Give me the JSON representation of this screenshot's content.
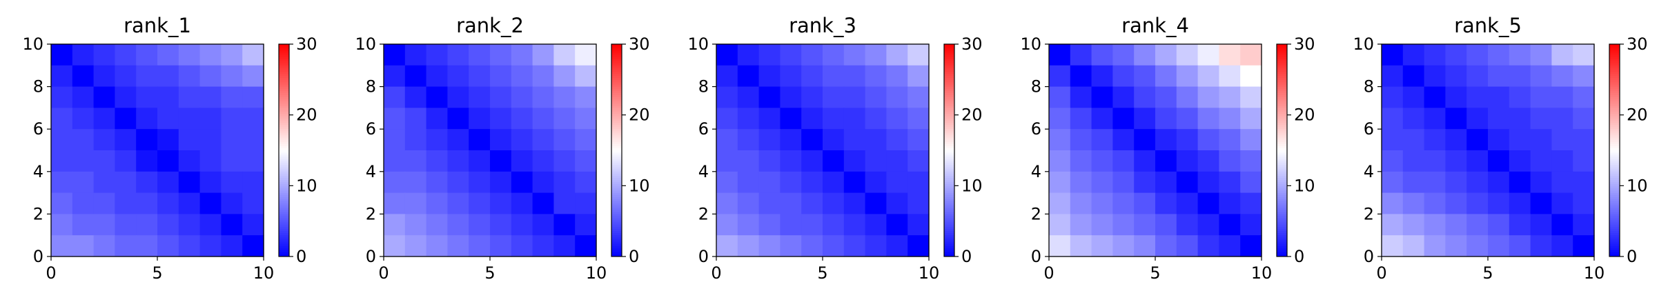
{
  "chart_data": [
    {
      "type": "heatmap",
      "title": "rank_1",
      "xticks": [
        "0",
        "5",
        "10"
      ],
      "yticks": [
        "0",
        "2",
        "4",
        "6",
        "8",
        "10"
      ],
      "xlim": [
        0,
        10
      ],
      "ylim": [
        10,
        0
      ],
      "colorbar": {
        "min": 0,
        "max": 30,
        "ticks": [
          "0",
          "10",
          "20",
          "30"
        ],
        "colormap": "bwr"
      },
      "matrix": [
        [
          0,
          2,
          3,
          4,
          5,
          6,
          7,
          8,
          9,
          11
        ],
        [
          2,
          0,
          2,
          3,
          4,
          4,
          5,
          6,
          7,
          8
        ],
        [
          3,
          2,
          0,
          2,
          3,
          3,
          4,
          4,
          5,
          5
        ],
        [
          4,
          3,
          2,
          0,
          2,
          3,
          3,
          3,
          4,
          4
        ],
        [
          4,
          4,
          3,
          2,
          0,
          1,
          3,
          3,
          4,
          4
        ],
        [
          4,
          4,
          4,
          3,
          1,
          0,
          2,
          3,
          4,
          4
        ],
        [
          5,
          5,
          4,
          4,
          3,
          2,
          0,
          2,
          3,
          3
        ],
        [
          6,
          5,
          5,
          4,
          4,
          3,
          2,
          0,
          2,
          3
        ],
        [
          7,
          6,
          6,
          5,
          5,
          4,
          3,
          2,
          0,
          2
        ],
        [
          8,
          8,
          7,
          6,
          6,
          5,
          4,
          3,
          2,
          0
        ]
      ]
    },
    {
      "type": "heatmap",
      "title": "rank_2",
      "xticks": [
        "0",
        "5",
        "10"
      ],
      "yticks": [
        "0",
        "2",
        "4",
        "6",
        "8",
        "10"
      ],
      "xlim": [
        0,
        10
      ],
      "ylim": [
        10,
        0
      ],
      "colorbar": {
        "min": 0,
        "max": 30,
        "ticks": [
          "0",
          "10",
          "20",
          "30"
        ],
        "colormap": "bwr"
      },
      "matrix": [
        [
          0,
          2,
          3,
          4,
          5,
          6,
          7,
          9,
          12,
          14
        ],
        [
          2,
          0,
          2,
          3,
          4,
          5,
          6,
          7,
          9,
          11
        ],
        [
          4,
          2,
          0,
          2,
          3,
          4,
          5,
          6,
          7,
          8
        ],
        [
          5,
          4,
          2,
          0,
          2,
          3,
          4,
          5,
          6,
          7
        ],
        [
          5,
          4,
          3,
          2,
          0,
          2,
          3,
          4,
          5,
          6
        ],
        [
          5,
          5,
          4,
          3,
          2,
          0,
          2,
          3,
          4,
          5
        ],
        [
          6,
          6,
          5,
          4,
          3,
          2,
          0,
          2,
          3,
          4
        ],
        [
          7,
          7,
          6,
          5,
          4,
          3,
          2,
          0,
          3,
          3
        ],
        [
          9,
          8,
          7,
          6,
          5,
          4,
          3,
          2,
          0,
          2
        ],
        [
          10,
          9,
          8,
          7,
          6,
          5,
          4,
          3,
          2,
          0
        ]
      ]
    },
    {
      "type": "heatmap",
      "title": "rank_3",
      "xticks": [
        "0",
        "5",
        "10"
      ],
      "yticks": [
        "0",
        "2",
        "4",
        "6",
        "8",
        "10"
      ],
      "xlim": [
        0,
        10
      ],
      "ylim": [
        10,
        0
      ],
      "colorbar": {
        "min": 0,
        "max": 30,
        "ticks": [
          "0",
          "10",
          "20",
          "30"
        ],
        "colormap": "bwr"
      },
      "matrix": [
        [
          0,
          2,
          3,
          4,
          5,
          6,
          7,
          8,
          10,
          12
        ],
        [
          2,
          0,
          2,
          3,
          4,
          5,
          5,
          6,
          7,
          9
        ],
        [
          3,
          2,
          0,
          2,
          3,
          4,
          4,
          5,
          6,
          7
        ],
        [
          4,
          3,
          2,
          0,
          2,
          3,
          3,
          4,
          5,
          6
        ],
        [
          5,
          4,
          3,
          2,
          0,
          2,
          3,
          3,
          4,
          5
        ],
        [
          5,
          5,
          4,
          3,
          2,
          0,
          2,
          3,
          3,
          4
        ],
        [
          6,
          5,
          5,
          4,
          3,
          2,
          0,
          2,
          3,
          3
        ],
        [
          7,
          6,
          5,
          5,
          4,
          3,
          2,
          0,
          2,
          3
        ],
        [
          8,
          7,
          6,
          5,
          5,
          4,
          3,
          2,
          0,
          2
        ],
        [
          10,
          9,
          8,
          7,
          6,
          5,
          4,
          3,
          2,
          0
        ]
      ]
    },
    {
      "type": "heatmap",
      "title": "rank_4",
      "xticks": [
        "0",
        "5",
        "10"
      ],
      "yticks": [
        "0",
        "2",
        "4",
        "6",
        "8",
        "10"
      ],
      "xlim": [
        0,
        10
      ],
      "ylim": [
        10,
        0
      ],
      "colorbar": {
        "min": 0,
        "max": 30,
        "ticks": [
          "0",
          "10",
          "20",
          "30"
        ],
        "colormap": "bwr"
      },
      "matrix": [
        [
          0,
          3,
          5,
          6,
          8,
          10,
          12,
          14,
          17,
          18
        ],
        [
          3,
          0,
          2,
          4,
          5,
          7,
          9,
          11,
          13,
          15
        ],
        [
          5,
          2,
          0,
          2,
          4,
          5,
          7,
          9,
          10,
          12
        ],
        [
          6,
          4,
          2,
          0,
          2,
          4,
          5,
          7,
          8,
          10
        ],
        [
          7,
          5,
          4,
          2,
          0,
          2,
          3,
          5,
          6,
          8
        ],
        [
          8,
          6,
          5,
          4,
          2,
          0,
          2,
          3,
          5,
          6
        ],
        [
          9,
          7,
          6,
          5,
          3,
          2,
          0,
          2,
          3,
          5
        ],
        [
          10,
          8,
          7,
          6,
          5,
          3,
          2,
          0,
          2,
          3
        ],
        [
          11,
          9,
          8,
          7,
          6,
          5,
          3,
          2,
          0,
          2
        ],
        [
          13,
          11,
          10,
          9,
          8,
          6,
          5,
          3,
          2,
          0
        ]
      ]
    },
    {
      "type": "heatmap",
      "title": "rank_5",
      "xticks": [
        "0",
        "5",
        "10"
      ],
      "yticks": [
        "0",
        "2",
        "4",
        "6",
        "8",
        "10"
      ],
      "xlim": [
        0,
        10
      ],
      "ylim": [
        10,
        0
      ],
      "colorbar": {
        "min": 0,
        "max": 30,
        "ticks": [
          "0",
          "10",
          "20",
          "30"
        ],
        "colormap": "bwr"
      },
      "matrix": [
        [
          0,
          2,
          3,
          4,
          5,
          6,
          7,
          8,
          11,
          12
        ],
        [
          2,
          0,
          2,
          3,
          4,
          5,
          5,
          6,
          7,
          8
        ],
        [
          3,
          2,
          0,
          2,
          3,
          3,
          4,
          5,
          5,
          6
        ],
        [
          4,
          3,
          2,
          0,
          2,
          3,
          3,
          4,
          4,
          5
        ],
        [
          4,
          4,
          3,
          2,
          0,
          2,
          3,
          3,
          4,
          4
        ],
        [
          5,
          4,
          4,
          3,
          2,
          0,
          2,
          3,
          3,
          4
        ],
        [
          6,
          5,
          5,
          4,
          3,
          2,
          0,
          2,
          3,
          3
        ],
        [
          8,
          7,
          6,
          5,
          4,
          3,
          2,
          0,
          2,
          3
        ],
        [
          10,
          9,
          8,
          7,
          6,
          5,
          3,
          2,
          0,
          2
        ],
        [
          12,
          11,
          9,
          8,
          7,
          6,
          5,
          3,
          2,
          0
        ]
      ]
    }
  ]
}
